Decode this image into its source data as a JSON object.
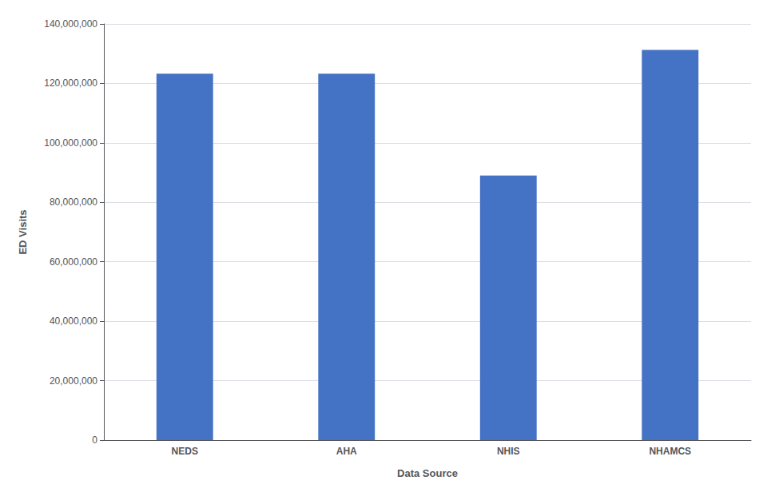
{
  "chart_data": {
    "type": "bar",
    "xlabel": "Data Source",
    "ylabel": "ED Visits",
    "categories": [
      "NEDS",
      "AHA",
      "NHIS",
      "NHAMCS"
    ],
    "values": [
      123278165,
      123278165,
      89019742,
      131296603
    ],
    "color": "#4472C4",
    "ylim": [
      0,
      140000000
    ],
    "yticks": [
      0,
      {
        "value": 20000000,
        "label": "20,000,000"
      },
      {
        "value": 40000000,
        "label": "40,000,000"
      },
      {
        "value": 60000000,
        "label": "60,000,000"
      },
      {
        "value": 80000000,
        "label": "80,000,000"
      },
      {
        "value": 100000000,
        "label": "100,000,000"
      },
      {
        "value": 120000000,
        "label": "120,000,000"
      },
      {
        "value": 140000000,
        "label": "140,000,000"
      }
    ],
    "grid": true
  }
}
